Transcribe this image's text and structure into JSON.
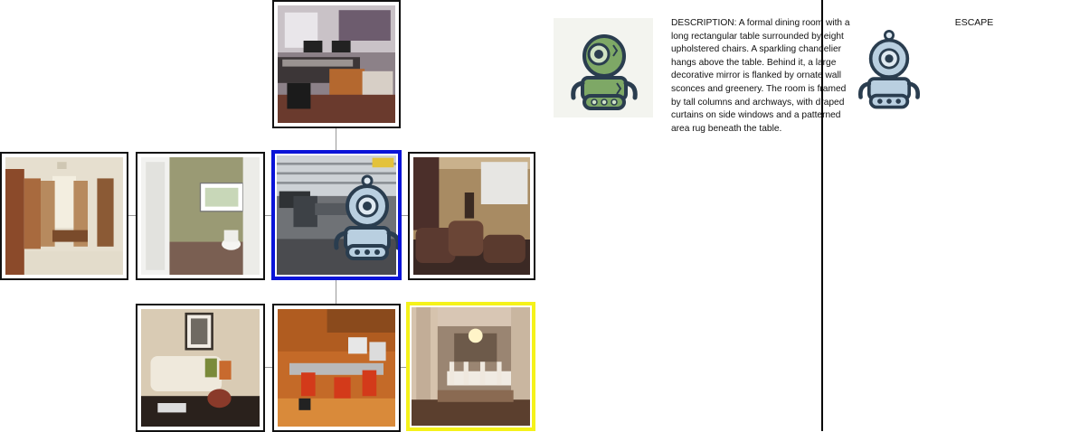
{
  "game": {
    "description": "DESCRIPTION: A formal dining room with a long rectangular table surrounded by eight upholstered chairs. A sparkling chandelier hangs above the table. Behind it, a large decorative mirror is flanked by ornate wall sconces and greenery. The room is framed by tall columns and archways, with draped curtains on side windows and a patterned area rug beneath the table.",
    "escape_label": "ESCAPE",
    "colors": {
      "current_border": "#0a14d8",
      "goal_border": "#f5f21a",
      "tile_border": "#111111",
      "connector": "#999999",
      "agent_green": "#7ea866",
      "robot_blue": "#b9cfe0",
      "robot_outline": "#2a3d4f"
    },
    "tiles": [
      {
        "id": "studio",
        "content": "recording studio",
        "state": "normal"
      },
      {
        "id": "closet",
        "content": "walk-in closet",
        "state": "normal"
      },
      {
        "id": "bathroom",
        "content": "bathroom",
        "state": "normal"
      },
      {
        "id": "office",
        "content": "office",
        "state": "current"
      },
      {
        "id": "theater",
        "content": "home theater",
        "state": "normal"
      },
      {
        "id": "living",
        "content": "living room",
        "state": "normal"
      },
      {
        "id": "computer",
        "content": "computer room",
        "state": "normal"
      },
      {
        "id": "dining",
        "content": "dining room",
        "state": "goal"
      }
    ]
  }
}
